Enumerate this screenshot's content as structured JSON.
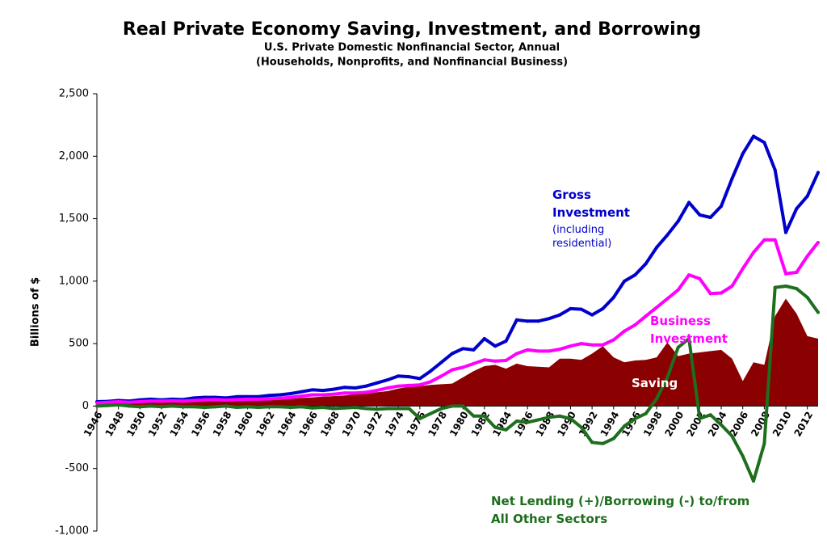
{
  "chart_data": {
    "type": "line",
    "title": "Real Private Economy Saving, Investment, and Borrowing",
    "subtitle": [
      "U.S. Private Domestic Nonfinancial Sector, Annual",
      "(Households, Nonprofits, and Nonfinancial Business)"
    ],
    "y_label": "Billions of $",
    "annotations": [
      "(including residential)"
    ],
    "x": [
      1946,
      1947,
      1948,
      1949,
      1950,
      1951,
      1952,
      1953,
      1954,
      1955,
      1956,
      1957,
      1958,
      1959,
      1960,
      1961,
      1962,
      1963,
      1964,
      1965,
      1966,
      1967,
      1968,
      1969,
      1970,
      1971,
      1972,
      1973,
      1974,
      1975,
      1976,
      1977,
      1978,
      1979,
      1980,
      1981,
      1982,
      1983,
      1984,
      1985,
      1986,
      1987,
      1988,
      1989,
      1990,
      1991,
      1992,
      1993,
      1994,
      1995,
      1996,
      1997,
      1998,
      1999,
      2000,
      2001,
      2002,
      2003,
      2004,
      2005,
      2006,
      2007,
      2008,
      2009,
      2010,
      2011,
      2012,
      2013
    ],
    "xlim": [
      1946,
      2013
    ],
    "xticks": [
      1946,
      1948,
      1950,
      1952,
      1954,
      1956,
      1958,
      1960,
      1962,
      1964,
      1966,
      1968,
      1970,
      1972,
      1974,
      1976,
      1978,
      1980,
      1982,
      1984,
      1986,
      1988,
      1990,
      1992,
      1994,
      1996,
      1998,
      2000,
      2002,
      2004,
      2006,
      2008,
      2010,
      2012
    ],
    "ylim": [
      -1000,
      2500
    ],
    "yticks": [
      {
        "value": -1000,
        "label": "-1,000"
      },
      -500,
      0,
      500,
      {
        "value": 1000,
        "label": "1,000"
      },
      {
        "value": 1500,
        "label": "1,500"
      },
      {
        "value": 2000,
        "label": "2,000"
      },
      {
        "value": 2500,
        "label": "2,500"
      }
    ],
    "grid": false,
    "series": [
      {
        "name": "Saving",
        "color": "#8b0000",
        "style": "area",
        "values": [
          20,
          25,
          30,
          25,
          30,
          30,
          30,
          32,
          30,
          35,
          40,
          40,
          38,
          42,
          45,
          48,
          50,
          52,
          58,
          65,
          70,
          75,
          80,
          85,
          95,
          100,
          110,
          120,
          140,
          155,
          160,
          170,
          175,
          180,
          230,
          280,
          320,
          330,
          300,
          340,
          320,
          315,
          310,
          380,
          380,
          370,
          420,
          480,
          390,
          350,
          365,
          370,
          390,
          510,
          400,
          420,
          430,
          440,
          450,
          380,
          200,
          350,
          330,
          720,
          860,
          740,
          560,
          540
        ]
      },
      {
        "name": "Gross Investment",
        "color": "#0000cc",
        "style": "line",
        "values": [
          35,
          38,
          45,
          40,
          50,
          55,
          50,
          55,
          52,
          65,
          70,
          70,
          65,
          75,
          75,
          75,
          85,
          90,
          100,
          115,
          130,
          125,
          135,
          150,
          145,
          160,
          185,
          210,
          240,
          235,
          220,
          280,
          350,
          420,
          460,
          450,
          540,
          480,
          520,
          690,
          680,
          680,
          700,
          730,
          780,
          775,
          730,
          780,
          870,
          1000,
          1050,
          1140,
          1270,
          1370,
          1480,
          1630,
          1530,
          1510,
          1600,
          1820,
          2020,
          2160,
          2110,
          1890,
          1390,
          1580,
          1680,
          1870
        ]
      },
      {
        "name": "Business Investment",
        "color": "#ff00ff",
        "style": "line",
        "values": [
          25,
          30,
          35,
          30,
          35,
          40,
          40,
          42,
          40,
          45,
          50,
          52,
          48,
          52,
          55,
          55,
          58,
          62,
          70,
          80,
          90,
          90,
          95,
          105,
          105,
          110,
          125,
          145,
          160,
          165,
          170,
          195,
          240,
          290,
          310,
          340,
          370,
          360,
          365,
          420,
          450,
          440,
          440,
          455,
          480,
          500,
          490,
          490,
          530,
          600,
          650,
          720,
          790,
          860,
          930,
          1050,
          1020,
          900,
          905,
          960,
          1100,
          1230,
          1330,
          1330,
          1060,
          1070,
          1200,
          1310
        ]
      },
      {
        "name": "Net Lending (+)/Borrowing (-) to/from All Other Sectors",
        "color": "#1e6e1e",
        "style": "line",
        "values": [
          0,
          5,
          10,
          0,
          -5,
          0,
          -5,
          0,
          -5,
          -5,
          -10,
          -5,
          0,
          -10,
          -5,
          -10,
          -5,
          -5,
          -10,
          -5,
          -15,
          -10,
          -20,
          -15,
          -10,
          -20,
          -25,
          -20,
          -20,
          -20,
          -100,
          -60,
          -20,
          0,
          0,
          -80,
          -80,
          -170,
          -190,
          -120,
          -130,
          -110,
          -90,
          -80,
          -100,
          -170,
          -290,
          -300,
          -260,
          -160,
          -100,
          -60,
          60,
          230,
          470,
          540,
          -100,
          -70,
          -150,
          -240,
          -400,
          -600,
          -300,
          950,
          960,
          940,
          870,
          750
        ]
      }
    ]
  }
}
